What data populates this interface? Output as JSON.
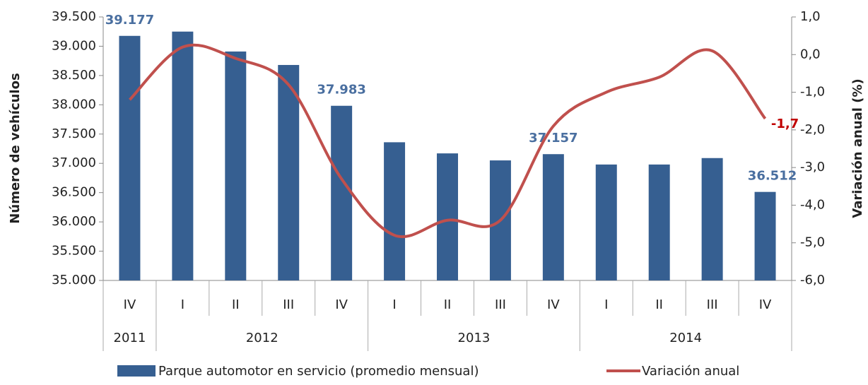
{
  "chart_data": {
    "type": "bar_line",
    "categories": [
      "IV",
      "I",
      "II",
      "III",
      "IV",
      "I",
      "II",
      "III",
      "IV",
      "I",
      "II",
      "III",
      "IV"
    ],
    "category_groups": [
      {
        "label": "2011",
        "span": 1
      },
      {
        "label": "2012",
        "span": 4
      },
      {
        "label": "2013",
        "span": 4
      },
      {
        "label": "2014",
        "span": 4
      }
    ],
    "y_label": "Número de vehículos",
    "y2_label": "Variación anual (%)",
    "ylim": [
      35000,
      39500
    ],
    "yticks": [
      {
        "value": 35000,
        "label": "35.000"
      },
      {
        "value": 35500,
        "label": "35.500"
      },
      {
        "value": 36000,
        "label": "36.000"
      },
      {
        "value": 36500,
        "label": "36.500"
      },
      {
        "value": 37000,
        "label": "37.000"
      },
      {
        "value": 37500,
        "label": "37.500"
      },
      {
        "value": 38000,
        "label": "38.000"
      },
      {
        "value": 38500,
        "label": "38.500"
      },
      {
        "value": 39000,
        "label": "39.000"
      },
      {
        "value": 39500,
        "label": "39.500"
      }
    ],
    "y2lim": [
      -6,
      1
    ],
    "y2ticks": [
      {
        "value": -6,
        "label": "-6,0"
      },
      {
        "value": -5,
        "label": "-5,0"
      },
      {
        "value": -4,
        "label": "-4,0"
      },
      {
        "value": -3,
        "label": "-3,0"
      },
      {
        "value": -2,
        "label": "-2,0"
      },
      {
        "value": -1,
        "label": "-1,0"
      },
      {
        "value": 0,
        "label": "0,0"
      },
      {
        "value": 1,
        "label": "1,0"
      }
    ],
    "series": [
      {
        "name": "Parque automotor en servicio (promedio mensual)",
        "type": "bar",
        "color": "#365f91",
        "label_color": "#4a6fa0",
        "values": [
          39177,
          39250,
          38910,
          38680,
          37983,
          37360,
          37170,
          37050,
          37157,
          36980,
          36980,
          37090,
          36512
        ],
        "value_labels": [
          "39.177",
          null,
          null,
          null,
          "37.983",
          null,
          null,
          null,
          "37.157",
          null,
          null,
          null,
          "36.512"
        ]
      },
      {
        "name": "Variación anual",
        "type": "line",
        "axis": "y2",
        "color": "#c0504d",
        "label_color": "#c00000",
        "values": [
          -1.2,
          0.2,
          -0.1,
          -0.8,
          -3.3,
          -4.8,
          -4.4,
          -4.4,
          -1.9,
          -1.0,
          -0.6,
          0.1,
          -1.7
        ],
        "value_labels": [
          null,
          null,
          null,
          null,
          null,
          null,
          null,
          null,
          null,
          null,
          null,
          null,
          "-1,7"
        ]
      }
    ]
  }
}
